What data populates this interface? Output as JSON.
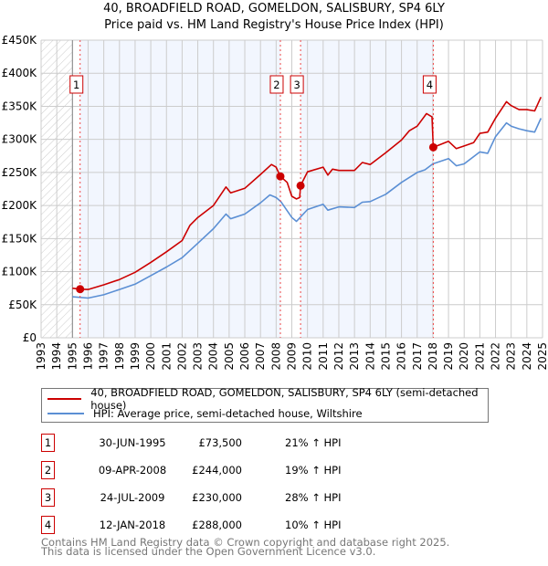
{
  "chart_data": {
    "type": "line",
    "title": "40, BROADFIELD ROAD, GOMELDON, SALISBURY, SP4 6LY",
    "subtitle": "Price paid vs. HM Land Registry's House Price Index (HPI)",
    "xlim": [
      1993,
      2025
    ],
    "ylim": [
      0,
      450000
    ],
    "x_ticks": [
      "1993",
      "1994",
      "1995",
      "1996",
      "1997",
      "1998",
      "1999",
      "2000",
      "2001",
      "2002",
      "2003",
      "2004",
      "2005",
      "2006",
      "2007",
      "2008",
      "2009",
      "2010",
      "2011",
      "2012",
      "2013",
      "2014",
      "2015",
      "2016",
      "2017",
      "2018",
      "2019",
      "2020",
      "2021",
      "2022",
      "2023",
      "2024",
      "2025"
    ],
    "y_ticks": [
      {
        "value": 0,
        "label": "£0"
      },
      {
        "value": 50000,
        "label": "£50K"
      },
      {
        "value": 100000,
        "label": "£100K"
      },
      {
        "value": 150000,
        "label": "£150K"
      },
      {
        "value": 200000,
        "label": "£200K"
      },
      {
        "value": 250000,
        "label": "£250K"
      },
      {
        "value": 300000,
        "label": "£300K"
      },
      {
        "value": 350000,
        "label": "£350K"
      },
      {
        "value": 400000,
        "label": "£400K"
      },
      {
        "value": 450000,
        "label": "£450K"
      }
    ],
    "grid": true,
    "series": [
      {
        "name": "40, BROADFIELD ROAD, GOMELDON, SALISBURY, SP4 6LY (semi-detached house)",
        "color": "#cc0000",
        "x": [
          1995.0,
          1995.5,
          1996,
          1997,
          1998,
          1999,
          2000,
          2001,
          2002,
          2002.5,
          2003,
          2004,
          2004.8,
          2005.1,
          2006,
          2007,
          2007.7,
          2008.0,
          2008.27,
          2008.7,
          2009.0,
          2009.3,
          2009.5,
          2009.56,
          2010,
          2011,
          2011.3,
          2011.6,
          2012,
          2013,
          2013.5,
          2014,
          2015,
          2016,
          2016.5,
          2017,
          2017.6,
          2017.95,
          2018.03,
          2019,
          2019.5,
          2020,
          2020.6,
          2021,
          2021.5,
          2022,
          2022.7,
          2023,
          2023.5,
          2024,
          2024.5,
          2024.9
        ],
        "y": [
          75000,
          73500,
          73000,
          80000,
          88000,
          99000,
          114000,
          130000,
          147000,
          170000,
          182000,
          200000,
          228000,
          219000,
          226000,
          247000,
          262000,
          258000,
          244000,
          235000,
          214000,
          210000,
          212000,
          230000,
          251000,
          258000,
          246000,
          255000,
          253000,
          253000,
          265000,
          262000,
          280000,
          299000,
          313000,
          320000,
          339000,
          334000,
          288000,
          297000,
          286000,
          290000,
          295000,
          309000,
          311000,
          332000,
          357000,
          351000,
          345000,
          345000,
          343000,
          364000
        ]
      },
      {
        "name": "HPI: Average price, semi-detached house, Wiltshire",
        "color": "#5b8fd4",
        "x": [
          1995.0,
          1996,
          1997,
          1998,
          1999,
          2000,
          2001,
          2002,
          2003,
          2004,
          2004.8,
          2005.1,
          2006,
          2007,
          2007.6,
          2008.0,
          2008.3,
          2009.0,
          2009.3,
          2010,
          2011,
          2011.3,
          2012,
          2013,
          2013.5,
          2014,
          2015,
          2016,
          2017,
          2017.5,
          2018,
          2019,
          2019.5,
          2020,
          2021,
          2021.5,
          2022,
          2022.7,
          2023,
          2023.5,
          2024,
          2024.5,
          2024.9
        ],
        "y": [
          62000,
          60000,
          65000,
          73000,
          81000,
          94000,
          107000,
          121000,
          143000,
          165000,
          187000,
          180000,
          187000,
          204000,
          216000,
          212000,
          206000,
          182000,
          176000,
          194000,
          202000,
          193000,
          198000,
          197000,
          205000,
          206000,
          217000,
          235000,
          250000,
          254000,
          263000,
          271000,
          260000,
          263000,
          281000,
          279000,
          304000,
          325000,
          320000,
          316000,
          313000,
          311000,
          332000
        ]
      }
    ],
    "sales": [
      {
        "num": "1",
        "x": 1995.49,
        "y": 73500,
        "date": "30-JUN-1995",
        "price": "£73,500",
        "hpi": "21% ↑ HPI"
      },
      {
        "num": "2",
        "x": 2008.27,
        "y": 244000,
        "date": "09-APR-2008",
        "price": "£244,000",
        "hpi": "19% ↑ HPI"
      },
      {
        "num": "3",
        "x": 2009.56,
        "y": 230000,
        "date": "24-JUL-2009",
        "price": "£230,000",
        "hpi": "28% ↑ HPI"
      },
      {
        "num": "4",
        "x": 2018.03,
        "y": 288000,
        "date": "12-JAN-2018",
        "price": "£288,000",
        "hpi": "10% ↑ HPI"
      }
    ],
    "legend_placement": "bottom"
  },
  "footer": {
    "line1": "Contains HM Land Registry data © Crown copyright and database right 2025.",
    "line2": "This data is licensed under the Open Government Licence v3.0."
  }
}
